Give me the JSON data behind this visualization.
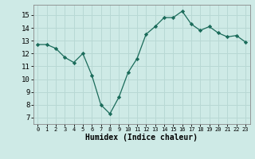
{
  "x": [
    0,
    1,
    2,
    3,
    4,
    5,
    6,
    7,
    8,
    9,
    10,
    11,
    12,
    13,
    14,
    15,
    16,
    17,
    18,
    19,
    20,
    21,
    22,
    23
  ],
  "y": [
    12.7,
    12.7,
    12.4,
    11.7,
    11.3,
    12.0,
    10.3,
    8.0,
    7.3,
    8.6,
    10.5,
    11.6,
    13.5,
    14.1,
    14.8,
    14.8,
    15.3,
    14.3,
    13.8,
    14.1,
    13.6,
    13.3,
    13.4,
    12.9
  ],
  "xlabel": "Humidex (Indice chaleur)",
  "xlim": [
    -0.5,
    23.5
  ],
  "ylim": [
    6.5,
    15.8
  ],
  "yticks": [
    7,
    8,
    9,
    10,
    11,
    12,
    13,
    14,
    15
  ],
  "xtick_labels": [
    "0",
    "1",
    "2",
    "3",
    "4",
    "5",
    "6",
    "7",
    "8",
    "9",
    "10",
    "11",
    "12",
    "13",
    "14",
    "15",
    "16",
    "17",
    "18",
    "19",
    "20",
    "21",
    "22",
    "23"
  ],
  "line_color": "#1a6b5a",
  "marker_color": "#1a6b5a",
  "bg_color": "#ceeae6",
  "grid_color": "#b8d8d4"
}
